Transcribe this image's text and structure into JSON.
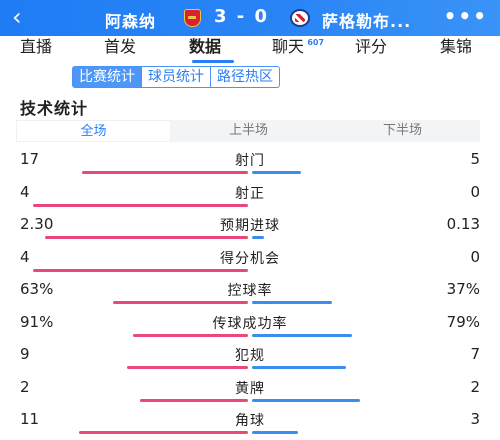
{
  "header": {
    "back_icon": "back-arrow-icon",
    "home_team": "阿森纳",
    "score": "3 - 0",
    "away_team": "萨格勒布...",
    "more_icon": "more-dots-icon",
    "more_text": "•••"
  },
  "tabs": [
    {
      "label": "直播"
    },
    {
      "label": "首发"
    },
    {
      "label": "数据"
    },
    {
      "label": "聊天",
      "badge": "607"
    },
    {
      "label": "评分"
    },
    {
      "label": "集锦"
    }
  ],
  "active_tab": "数据",
  "segments": [
    "比赛统计",
    "球员统计",
    "路径热区"
  ],
  "active_segment": "比赛统计",
  "section_title": "技术统计",
  "periods": [
    "全场",
    "上半场",
    "下半场"
  ],
  "active_period": "全场",
  "colors": {
    "home_bar": "#e8497a",
    "away_bar": "#3b8ef0",
    "accent": "#2b7ff5"
  },
  "stats": [
    {
      "label": "射门",
      "left": "17",
      "right": "5",
      "left_val": 17,
      "right_val": 5
    },
    {
      "label": "射正",
      "left": "4",
      "right": "0",
      "left_val": 4,
      "right_val": 0
    },
    {
      "label": "预期进球",
      "left": "2.30",
      "right": "0.13",
      "left_val": 2.3,
      "right_val": 0.13
    },
    {
      "label": "得分机会",
      "left": "4",
      "right": "0",
      "left_val": 4,
      "right_val": 0
    },
    {
      "label": "控球率",
      "left": "63%",
      "right": "37%",
      "left_val": 63,
      "right_val": 37
    },
    {
      "label": "传球成功率",
      "left": "91%",
      "right": "79%",
      "left_val": 91,
      "right_val": 79
    },
    {
      "label": "犯规",
      "left": "9",
      "right": "7",
      "left_val": 9,
      "right_val": 7
    },
    {
      "label": "黄牌",
      "left": "2",
      "right": "2",
      "left_val": 2,
      "right_val": 2
    },
    {
      "label": "角球",
      "left": "11",
      "right": "3",
      "left_val": 11,
      "right_val": 3
    }
  ]
}
